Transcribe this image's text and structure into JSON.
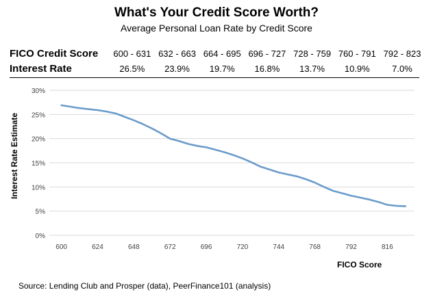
{
  "title": "What's Your Credit Score Worth?",
  "subtitle": "Average Personal Loan Rate by Credit Score",
  "table": {
    "row1_label": "FICO Credit Score",
    "row2_label": "Interest Rate",
    "ranges": [
      "600 - 631",
      "632 - 663",
      "664 - 695",
      "696 - 727",
      "728 - 759",
      "760 - 791",
      "792 - 823"
    ],
    "rates": [
      "26.5%",
      "23.9%",
      "19.7%",
      "16.8%",
      "13.7%",
      "10.9%",
      "7.0%"
    ]
  },
  "source": "Source: Lending Club and Prosper (data), PeerFinance101 (analysis)",
  "chart_data": {
    "type": "line",
    "xlabel": "FICO Score",
    "ylabel": "Interest Rate Estimate",
    "xlim": [
      592,
      834
    ],
    "ylim": [
      0,
      30
    ],
    "x_ticks": [
      600,
      624,
      648,
      672,
      696,
      720,
      744,
      768,
      792,
      816
    ],
    "y_ticks": [
      0,
      5,
      10,
      15,
      20,
      25,
      30
    ],
    "y_tick_labels": [
      "0%",
      "5%",
      "10%",
      "15%",
      "20%",
      "25%",
      "30%"
    ],
    "grid": true,
    "legend": "none",
    "line_color": "#6a9bcb",
    "series": [
      {
        "x": [
          600,
          606,
          612,
          618,
          624,
          630,
          636,
          642,
          648,
          654,
          660,
          666,
          672,
          678,
          684,
          690,
          696,
          702,
          708,
          714,
          720,
          726,
          732,
          738,
          744,
          750,
          756,
          762,
          768,
          774,
          780,
          786,
          792,
          798,
          804,
          810,
          816,
          822,
          828
        ],
        "values": [
          26.9,
          26.6,
          26.3,
          26.1,
          25.9,
          25.6,
          25.2,
          24.5,
          23.8,
          23.0,
          22.1,
          21.1,
          20.0,
          19.5,
          18.9,
          18.5,
          18.2,
          17.7,
          17.2,
          16.6,
          15.9,
          15.1,
          14.2,
          13.6,
          13.0,
          12.6,
          12.2,
          11.6,
          10.9,
          10.0,
          9.2,
          8.7,
          8.2,
          7.8,
          7.4,
          6.9,
          6.3,
          6.1,
          6.0
        ]
      }
    ]
  }
}
